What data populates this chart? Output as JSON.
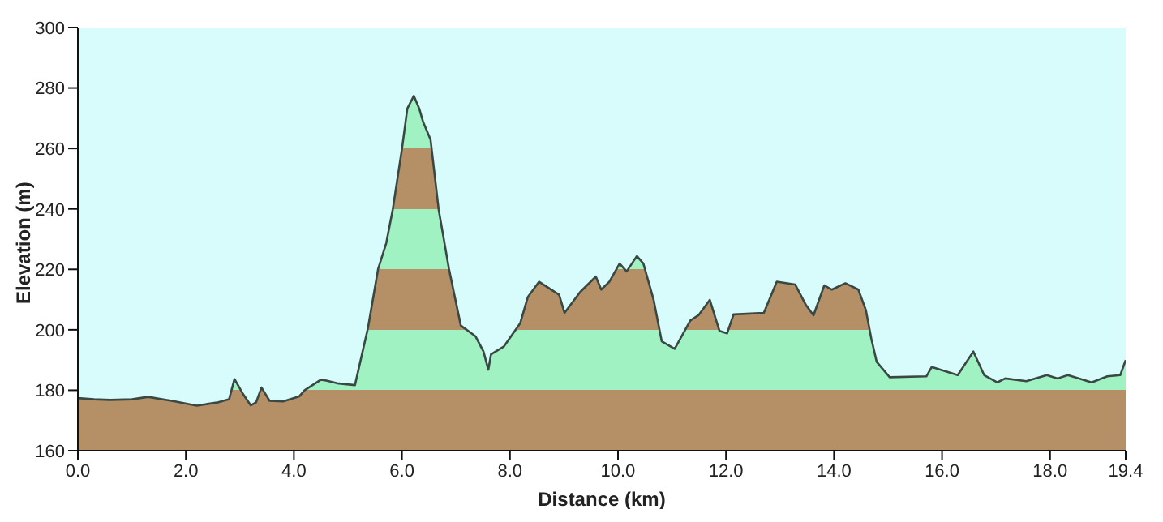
{
  "chart_data": {
    "type": "area",
    "xlabel": "Distance   (km)",
    "ylabel": "Elevation (m)",
    "x": [
      0,
      0.3,
      0.6,
      1.0,
      1.3,
      1.8,
      2.2,
      2.6,
      2.8,
      2.9,
      3.05,
      3.2,
      3.3,
      3.4,
      3.55,
      3.8,
      4.1,
      4.2,
      4.5,
      4.6,
      4.8,
      5.13,
      5.37,
      5.56,
      5.71,
      5.83,
      6.0,
      6.1,
      6.22,
      6.32,
      6.39,
      6.53,
      6.68,
      6.87,
      7.09,
      7.36,
      7.51,
      7.6,
      7.65,
      7.89,
      8.19,
      8.33,
      8.54,
      8.91,
      9.01,
      9.3,
      9.59,
      9.69,
      9.84,
      10.03,
      10.16,
      10.35,
      10.47,
      10.66,
      10.81,
      11.05,
      11.34,
      11.49,
      11.7,
      11.88,
      12.02,
      12.14,
      12.7,
      12.94,
      13.28,
      13.48,
      13.62,
      13.82,
      13.96,
      14.21,
      14.45,
      14.59,
      14.69,
      14.79,
      15.03,
      15.71,
      15.81,
      16.29,
      16.58,
      16.78,
      17.02,
      17.17,
      17.56,
      17.94,
      18.14,
      18.33,
      18.77,
      19.06,
      19.3,
      19.4
    ],
    "series": [
      {
        "color": "#b58f66",
        "values": [
          177.4,
          177,
          176.8,
          177,
          177.8,
          176.3,
          174.9,
          176,
          177,
          183.7,
          179,
          175,
          176,
          180.9,
          176.5,
          176.3,
          178,
          180,
          183.5,
          183.2,
          182.3,
          181.7,
          200.5,
          220.2,
          228.7,
          239.8,
          259.8,
          273.2,
          277.4,
          273.2,
          268.9,
          262.9,
          239.8,
          220.2,
          201.4,
          197.9,
          192.8,
          186.8,
          191.9,
          194.5,
          202.2,
          210.8,
          215.9,
          211.6,
          205.6,
          212.5,
          217.6,
          213.3,
          215.9,
          221.9,
          219.3,
          224.4,
          221.9,
          209.9,
          196.2,
          193.7,
          203.1,
          204.8,
          209.9,
          199.6,
          198.8,
          205.1,
          205.6,
          215.9,
          215,
          208.2,
          204.8,
          214.7,
          213.3,
          215.4,
          213.3,
          206.5,
          197.1,
          189.4,
          184.3,
          184.6,
          187.7,
          185,
          192.8,
          185,
          182.6,
          183.9,
          183,
          185,
          183.9,
          185,
          182.6,
          184.6,
          185,
          190
        ]
      }
    ],
    "bands": [
      {
        "axis": "y",
        "from": 180,
        "to": 200,
        "color": "#a0f2c2"
      },
      {
        "axis": "y",
        "from": 220,
        "to": 240,
        "color": "#a0f2c2"
      },
      {
        "axis": "y",
        "from": 260,
        "to": 280,
        "color": "#a0f2c2"
      }
    ],
    "xlim": [
      0,
      19.4
    ],
    "ylim": [
      160,
      300
    ],
    "xticks": [
      {
        "value": 0,
        "label": "0.0"
      },
      {
        "value": 2,
        "label": "2.0"
      },
      {
        "value": 4,
        "label": "4.0"
      },
      {
        "value": 6,
        "label": "6.0"
      },
      {
        "value": 8,
        "label": "8.0"
      },
      {
        "value": 10,
        "label": "10.0"
      },
      {
        "value": 12,
        "label": "12.0"
      },
      {
        "value": 14,
        "label": "14.0"
      },
      {
        "value": 16,
        "label": "16.0"
      },
      {
        "value": 18,
        "label": "18.0"
      },
      {
        "value": 19.4,
        "label": "19.4"
      }
    ],
    "yticks": [
      160,
      180,
      200,
      220,
      240,
      260,
      280,
      300
    ],
    "grid": false,
    "legend": false,
    "marker": "none",
    "line_style": "solid"
  }
}
